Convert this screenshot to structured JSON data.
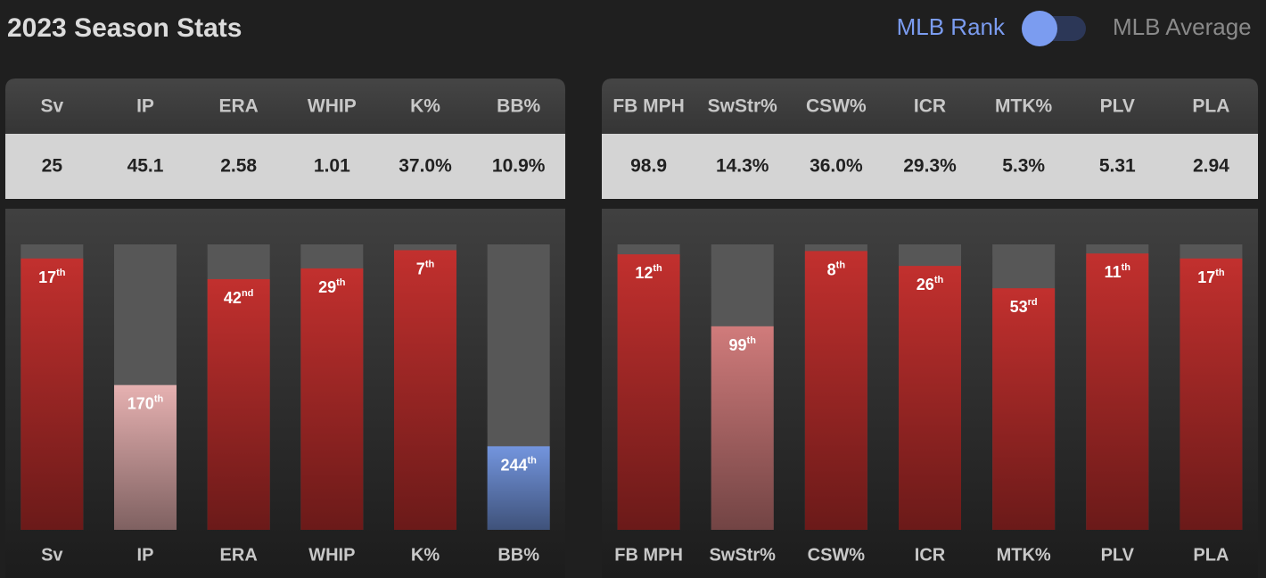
{
  "header": {
    "title": "2023 Season Stats",
    "toggle_on": "MLB Rank",
    "toggle_off": "MLB Average"
  },
  "tables": [
    {
      "columns": [
        "Sv",
        "IP",
        "ERA",
        "WHIP",
        "K%",
        "BB%"
      ],
      "values": [
        "25",
        "45.1",
        "2.58",
        "1.01",
        "37.0%",
        "10.9%"
      ]
    },
    {
      "columns": [
        "FB MPH",
        "SwStr%",
        "CSW%",
        "ICR",
        "MTK%",
        "PLV",
        "PLA"
      ],
      "values": [
        "98.9",
        "14.3%",
        "36.0%",
        "29.3%",
        "5.3%",
        "5.31",
        "2.94"
      ]
    }
  ],
  "chart_data": [
    {
      "type": "bar",
      "categories": [
        "Sv",
        "IP",
        "ERA",
        "WHIP",
        "K%",
        "BB%"
      ],
      "values": [
        17,
        170,
        42,
        29,
        7,
        244
      ],
      "value_labels": [
        "17th",
        "170th",
        "42nd",
        "29th",
        "7th",
        "244th"
      ],
      "colors": [
        "#c2302e",
        "#e6b1b1",
        "#c2302e",
        "#c2302e",
        "#c2302e",
        "#7395de"
      ],
      "ylim": [
        345,
        0
      ]
    },
    {
      "type": "bar",
      "categories": [
        "FB MPH",
        "SwStr%",
        "CSW%",
        "ICR",
        "MTK%",
        "PLV",
        "PLA"
      ],
      "values": [
        12,
        99,
        8,
        26,
        53,
        11,
        17
      ],
      "value_labels": [
        "12th",
        "99th",
        "8th",
        "26th",
        "53rd",
        "11th",
        "17th"
      ],
      "colors": [
        "#c2302e",
        "#d07b7b",
        "#c2302e",
        "#c2302e",
        "#c2302e",
        "#c2302e",
        "#c2302e"
      ],
      "ylim": [
        345,
        0
      ]
    }
  ]
}
